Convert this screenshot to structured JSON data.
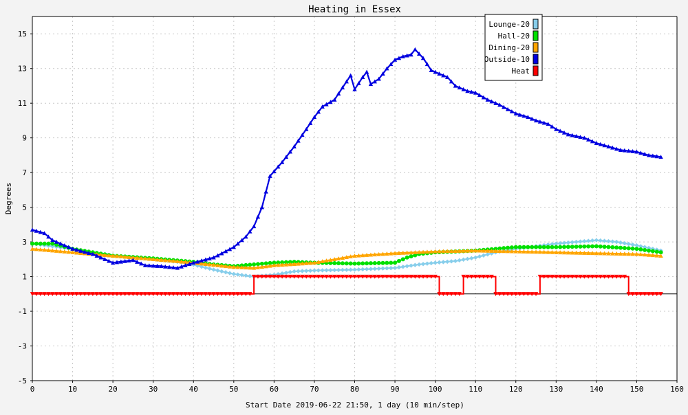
{
  "chart_data": {
    "type": "line",
    "title": "Heating in Essex",
    "xlabel": "Start Date 2019-06-22 21:50, 1 day (10 min/step)",
    "ylabel": "Degrees",
    "xlim": [
      0,
      160
    ],
    "ylim": [
      -5,
      16
    ],
    "xticks": [
      0,
      10,
      20,
      30,
      40,
      50,
      60,
      70,
      80,
      90,
      100,
      110,
      120,
      130,
      140,
      150,
      160
    ],
    "yticks": [
      -5,
      -3,
      -1,
      1,
      3,
      5,
      7,
      9,
      11,
      13,
      15
    ],
    "grid": true,
    "legend": "top-right",
    "series": [
      {
        "name": "Lounge-20",
        "color": "#87ceeb",
        "marker": "diamond",
        "points": [
          [
            0,
            2.9
          ],
          [
            10,
            2.6
          ],
          [
            20,
            2.2
          ],
          [
            30,
            2.0
          ],
          [
            38,
            1.8
          ],
          [
            45,
            1.4
          ],
          [
            50,
            1.15
          ],
          [
            55,
            1.0
          ],
          [
            60,
            1.1
          ],
          [
            65,
            1.3
          ],
          [
            70,
            1.35
          ],
          [
            80,
            1.4
          ],
          [
            90,
            1.5
          ],
          [
            93,
            1.6
          ],
          [
            96,
            1.7
          ],
          [
            100,
            1.8
          ],
          [
            105,
            1.9
          ],
          [
            110,
            2.1
          ],
          [
            115,
            2.4
          ],
          [
            120,
            2.6
          ],
          [
            130,
            2.9
          ],
          [
            135,
            3.0
          ],
          [
            140,
            3.1
          ],
          [
            145,
            3.0
          ],
          [
            150,
            2.8
          ],
          [
            156,
            2.5
          ]
        ]
      },
      {
        "name": "Hall-20",
        "color": "#00e000",
        "marker": "circle",
        "points": [
          [
            0,
            2.9
          ],
          [
            5,
            2.9
          ],
          [
            10,
            2.6
          ],
          [
            20,
            2.2
          ],
          [
            30,
            2.05
          ],
          [
            40,
            1.85
          ],
          [
            45,
            1.7
          ],
          [
            50,
            1.6
          ],
          [
            55,
            1.7
          ],
          [
            60,
            1.8
          ],
          [
            65,
            1.85
          ],
          [
            70,
            1.8
          ],
          [
            80,
            1.75
          ],
          [
            90,
            1.8
          ],
          [
            93,
            2.1
          ],
          [
            96,
            2.3
          ],
          [
            100,
            2.4
          ],
          [
            110,
            2.5
          ],
          [
            115,
            2.6
          ],
          [
            120,
            2.7
          ],
          [
            130,
            2.7
          ],
          [
            140,
            2.75
          ],
          [
            150,
            2.6
          ],
          [
            156,
            2.4
          ]
        ]
      },
      {
        "name": "Dining-20",
        "color": "#ffa500",
        "marker": "triangle",
        "points": [
          [
            0,
            2.6
          ],
          [
            10,
            2.4
          ],
          [
            20,
            2.2
          ],
          [
            30,
            2.0
          ],
          [
            40,
            1.8
          ],
          [
            50,
            1.55
          ],
          [
            55,
            1.5
          ],
          [
            60,
            1.65
          ],
          [
            70,
            1.8
          ],
          [
            75,
            2.0
          ],
          [
            80,
            2.2
          ],
          [
            90,
            2.35
          ],
          [
            100,
            2.45
          ],
          [
            110,
            2.5
          ],
          [
            120,
            2.45
          ],
          [
            130,
            2.4
          ],
          [
            140,
            2.35
          ],
          [
            150,
            2.3
          ],
          [
            156,
            2.2
          ]
        ]
      },
      {
        "name": "Outside-10",
        "color": "#0000e0",
        "marker": "triangle",
        "points": [
          [
            0,
            3.7
          ],
          [
            3,
            3.5
          ],
          [
            5,
            3.1
          ],
          [
            10,
            2.6
          ],
          [
            15,
            2.3
          ],
          [
            20,
            1.8
          ],
          [
            25,
            1.95
          ],
          [
            28,
            1.65
          ],
          [
            32,
            1.6
          ],
          [
            36,
            1.5
          ],
          [
            40,
            1.8
          ],
          [
            45,
            2.1
          ],
          [
            50,
            2.7
          ],
          [
            53,
            3.3
          ],
          [
            55,
            3.9
          ],
          [
            57,
            5.0
          ],
          [
            59,
            6.8
          ],
          [
            62,
            7.6
          ],
          [
            65,
            8.5
          ],
          [
            68,
            9.5
          ],
          [
            70,
            10.2
          ],
          [
            72,
            10.8
          ],
          [
            75,
            11.2
          ],
          [
            77,
            11.9
          ],
          [
            79,
            12.6
          ],
          [
            80,
            11.8
          ],
          [
            82,
            12.5
          ],
          [
            83,
            12.8
          ],
          [
            84,
            12.1
          ],
          [
            86,
            12.4
          ],
          [
            88,
            13.0
          ],
          [
            90,
            13.5
          ],
          [
            92,
            13.7
          ],
          [
            94,
            13.8
          ],
          [
            95,
            14.1
          ],
          [
            97,
            13.6
          ],
          [
            99,
            12.9
          ],
          [
            101,
            12.7
          ],
          [
            103,
            12.5
          ],
          [
            105,
            12.0
          ],
          [
            108,
            11.7
          ],
          [
            110,
            11.6
          ],
          [
            113,
            11.2
          ],
          [
            116,
            10.9
          ],
          [
            120,
            10.4
          ],
          [
            123,
            10.2
          ],
          [
            125,
            10.0
          ],
          [
            128,
            9.8
          ],
          [
            130,
            9.5
          ],
          [
            133,
            9.2
          ],
          [
            137,
            9.0
          ],
          [
            140,
            8.7
          ],
          [
            143,
            8.5
          ],
          [
            146,
            8.3
          ],
          [
            150,
            8.2
          ],
          [
            153,
            8.0
          ],
          [
            156,
            7.9
          ]
        ]
      },
      {
        "name": "Heat",
        "color": "#ff0000",
        "marker": "down-triangle",
        "step": true,
        "points": [
          [
            0,
            0
          ],
          [
            55,
            0
          ],
          [
            55,
            1
          ],
          [
            101,
            1
          ],
          [
            101,
            0
          ],
          [
            107,
            0
          ],
          [
            107,
            1
          ],
          [
            115,
            1
          ],
          [
            115,
            0
          ],
          [
            126,
            0
          ],
          [
            126,
            1
          ],
          [
            148,
            1
          ],
          [
            148,
            0
          ],
          [
            156,
            0
          ]
        ]
      }
    ]
  }
}
